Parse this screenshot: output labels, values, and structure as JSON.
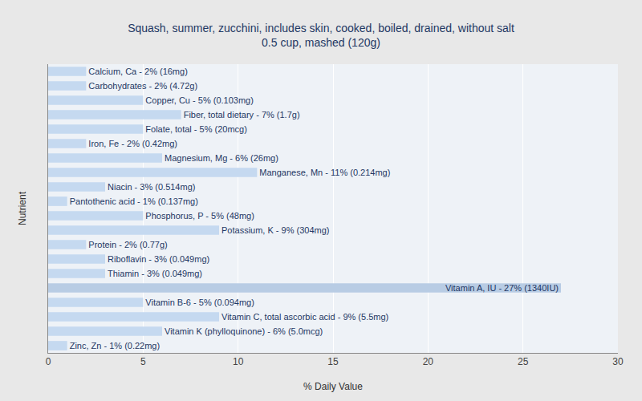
{
  "chart_data": {
    "type": "bar",
    "orientation": "horizontal",
    "title": "Squash, summer, zucchini, includes skin, cooked, boiled, drained, without salt\n0.5 cup, mashed (120g)",
    "xlabel": "% Daily Value",
    "ylabel": "Nutrient",
    "categories": [
      "Calcium, Ca - 2% (16mg)",
      "Carbohydrates - 2% (4.72g)",
      "Copper, Cu - 5% (0.103mg)",
      "Fiber, total dietary - 7% (1.7g)",
      "Folate, total - 5% (20mcg)",
      "Iron, Fe - 2% (0.42mg)",
      "Magnesium, Mg - 6% (26mg)",
      "Manganese, Mn - 11% (0.214mg)",
      "Niacin - 3% (0.514mg)",
      "Pantothenic acid - 1% (0.137mg)",
      "Phosphorus, P - 5% (48mg)",
      "Potassium, K - 9% (304mg)",
      "Protein - 2% (0.77g)",
      "Riboflavin - 3% (0.049mg)",
      "Thiamin - 3% (0.049mg)",
      "Vitamin A, IU - 27% (1340IU)",
      "Vitamin B-6 - 5% (0.094mg)",
      "Vitamin C, total ascorbic acid - 9% (5.5mg)",
      "Vitamin K (phylloquinone) - 6% (5.0mcg)",
      "Zinc, Zn - 1% (0.22mg)"
    ],
    "values": [
      2,
      2,
      5,
      7,
      5,
      2,
      6,
      11,
      3,
      1,
      5,
      9,
      2,
      3,
      3,
      27,
      5,
      9,
      6,
      1
    ],
    "colors": [
      "#c5d9f0",
      "#c5d9f0",
      "#c5d9f0",
      "#c5d9f0",
      "#c5d9f0",
      "#c5d9f0",
      "#c5d9f0",
      "#c5d9f0",
      "#c5d9f0",
      "#c5d9f0",
      "#c5d9f0",
      "#c5d9f0",
      "#c5d9f0",
      "#c5d9f0",
      "#c5d9f0",
      "#b8cce4",
      "#c5d9f0",
      "#c5d9f0",
      "#c5d9f0",
      "#c5d9f0"
    ],
    "xlim": [
      0,
      30
    ],
    "xticks": [
      0,
      5,
      10,
      15,
      20,
      25,
      30
    ],
    "grid": true,
    "tick_labels": "x"
  }
}
